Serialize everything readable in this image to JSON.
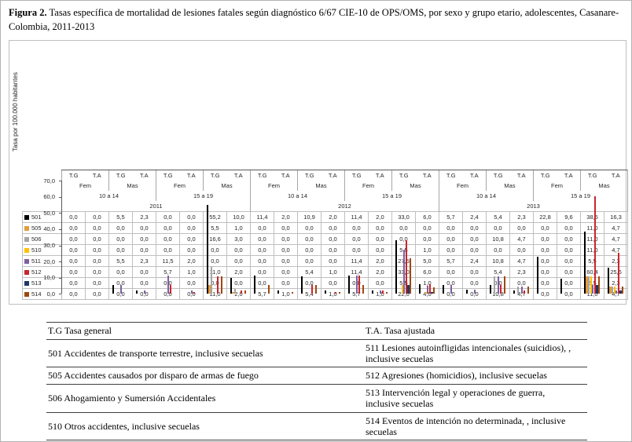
{
  "caption": {
    "label": "Figura 2.",
    "text": " Tasas específica de mortalidad de lesiones fatales según diagnóstico 6/67 CIE-10 de OPS/OMS, por sexo y grupo etario, adolescentes, Casanare-Colombia, 2011-2013"
  },
  "chart_data": {
    "type": "bar",
    "title": "",
    "xlabel": "",
    "ylabel": "Tasa por 100.000 habitantes",
    "ylim": [
      0,
      70
    ],
    "ytick_step": 10,
    "yticks": [
      "70,0",
      "60,0",
      "50,0",
      "40,0",
      "30,0",
      "20,0",
      "10,0",
      "0,0"
    ],
    "grid": false,
    "legend_position": "data-table-keys",
    "axis_levels": {
      "measure": [
        "T.G",
        "T.A",
        "T.G",
        "T.A",
        "T.G",
        "T.A",
        "T.G",
        "T.A",
        "T.G",
        "T.A",
        "T.G",
        "T.A",
        "T.G",
        "T.A",
        "T.G",
        "T.A",
        "T.G",
        "T.A",
        "T.G",
        "T.A",
        "T.G",
        "T.A",
        "T.G",
        "T.A"
      ],
      "sex": [
        "Fem",
        "Mas",
        "Fem",
        "Mas",
        "Fem",
        "Mas",
        "Fem",
        "Mas",
        "Fem",
        "Mas",
        "Fem",
        "Mas"
      ],
      "age": [
        "10 a 14",
        "15 a 19",
        "10 a 14",
        "15 a 19",
        "10 a 14",
        "15 a 19"
      ],
      "year": [
        "2011",
        "2012",
        "2013"
      ]
    },
    "series": [
      {
        "code": "501",
        "color": "#000000",
        "values": [
          0,
          0,
          5.5,
          2.3,
          0,
          0,
          55.2,
          10,
          11.4,
          2,
          10.9,
          2,
          11.4,
          2,
          33,
          6,
          5.7,
          2.4,
          5.4,
          2.3,
          22.8,
          9.6,
          38.5,
          16.3
        ]
      },
      {
        "code": "505",
        "color": "#E39C3F",
        "values": [
          0,
          0,
          0,
          0,
          0,
          0,
          5.5,
          1,
          0,
          0,
          0,
          0,
          0,
          0,
          0,
          0,
          0,
          0,
          0,
          0,
          0,
          0,
          11,
          4.7
        ]
      },
      {
        "code": "506",
        "color": "#A5A5A5",
        "values": [
          0,
          0,
          0,
          0,
          0,
          0,
          16.6,
          3,
          0,
          0,
          0,
          0,
          0,
          0,
          0,
          0,
          0,
          0,
          10.8,
          4.7,
          0,
          0,
          11,
          4.7
        ]
      },
      {
        "code": "510",
        "color": "#FFC000",
        "values": [
          0,
          0,
          0,
          0,
          0,
          0,
          0,
          0,
          0,
          0,
          0,
          0,
          0,
          0,
          5.5,
          1,
          0,
          0,
          0,
          0,
          0,
          0,
          11,
          4.7
        ]
      },
      {
        "code": "511",
        "color": "#7D60A0",
        "values": [
          0,
          0,
          5.5,
          2.3,
          11.5,
          2,
          0,
          0,
          0,
          0,
          0,
          0,
          11.4,
          2,
          27.5,
          5,
          5.7,
          2.4,
          10.8,
          4.7,
          0,
          0,
          5.5,
          2.3
        ]
      },
      {
        "code": "512",
        "color": "#C9242E",
        "values": [
          0,
          0,
          0,
          0,
          5.7,
          1,
          11,
          2,
          0,
          0,
          5.4,
          1,
          11.4,
          2,
          33,
          6,
          0,
          0,
          5.4,
          2.3,
          0,
          0,
          60.4,
          25.6
        ]
      },
      {
        "code": "513",
        "color": "#1F3864",
        "values": [
          0,
          0,
          0,
          0,
          0,
          0,
          0,
          0,
          0,
          0,
          0,
          0,
          0,
          0,
          5.5,
          1,
          0,
          0,
          0,
          0,
          0,
          0,
          5.5,
          2.3
        ]
      },
      {
        "code": "514",
        "color": "#9E480E",
        "values": [
          0,
          0,
          0,
          0,
          0,
          0,
          11,
          2,
          5.7,
          1,
          5.4,
          1,
          5.7,
          1,
          22,
          4,
          0,
          0,
          10.8,
          4.7,
          0,
          0,
          11,
          4.7
        ]
      }
    ]
  },
  "code_table": {
    "headers": [
      "T.G Tasa general",
      "T.A. Tasa ajustada"
    ],
    "rows": [
      [
        "501 Accidentes de transporte terrestre, inclusive secuelas",
        "511 Lesiones autoinfligidas intencionales (suicidios), , inclusive secuelas"
      ],
      [
        "505 Accidentes causados por disparo de armas de fuego",
        "512 Agresiones (homicidios), inclusive secuelas"
      ],
      [
        "506 Ahogamiento y Sumersión Accidentales",
        "513 Intervención legal y operaciones de guerra, inclusive secuelas"
      ],
      [
        "510 Otros accidentes, inclusive secuelas",
        "514 Eventos de intención no determinada, , inclusive secuelas"
      ]
    ]
  }
}
